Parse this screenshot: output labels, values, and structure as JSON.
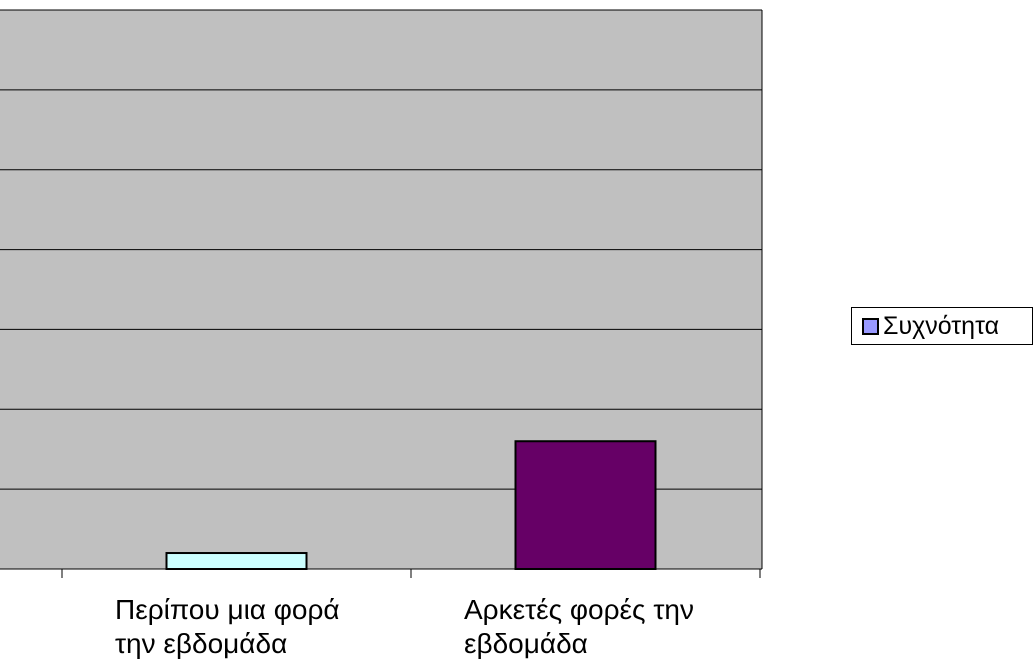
{
  "chart_data": {
    "type": "bar",
    "categories": [
      "",
      [
        "Περίπου μια φορά",
        "την εβδομάδα"
      ],
      [
        "Αρκετές φορές την",
        "εβδομάδα"
      ]
    ],
    "series": [
      {
        "name": "Συχνότητα",
        "values": [
          0,
          0.2,
          1.6
        ],
        "bar_colors": [
          "#CCFFFF",
          "#CCFFFF",
          "#660066"
        ]
      }
    ],
    "ylim": [
      0,
      7
    ],
    "gridlines": [
      1,
      2,
      3,
      4,
      5,
      6,
      7
    ],
    "grid": true,
    "plot_background": "#C0C0C0",
    "legend": {
      "position": "right",
      "swatch_color": "#9999FF"
    },
    "xlabel": "",
    "ylabel": ""
  }
}
